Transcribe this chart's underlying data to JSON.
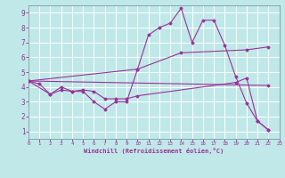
{
  "background_color": "#c0e8e8",
  "line_color": "#993399",
  "grid_color": "#aadddd",
  "xlabel": "Windchill (Refroidissement éolien,°C)",
  "xlim": [
    0,
    23
  ],
  "ylim": [
    0.5,
    9.5
  ],
  "xticks": [
    0,
    1,
    2,
    3,
    4,
    5,
    6,
    7,
    8,
    9,
    10,
    11,
    12,
    13,
    14,
    15,
    16,
    17,
    18,
    19,
    20,
    21,
    22,
    23
  ],
  "yticks": [
    1,
    2,
    3,
    4,
    5,
    6,
    7,
    8,
    9
  ],
  "line1_x": [
    0,
    1,
    2,
    3,
    4,
    5,
    6,
    7,
    8,
    9,
    10,
    11,
    12,
    13,
    14,
    15,
    16,
    17,
    18,
    19,
    20,
    21,
    22
  ],
  "line1_y": [
    4.4,
    4.2,
    3.5,
    3.8,
    3.7,
    3.7,
    3.0,
    2.5,
    3.0,
    3.0,
    5.2,
    7.5,
    8.0,
    8.3,
    9.3,
    7.0,
    8.5,
    8.5,
    6.8,
    4.7,
    2.9,
    1.7,
    1.1
  ],
  "line2_x": [
    0,
    2,
    3,
    4,
    5,
    6,
    7,
    8,
    9,
    10,
    19,
    20,
    21,
    22
  ],
  "line2_y": [
    4.4,
    3.5,
    4.0,
    3.7,
    3.8,
    3.7,
    3.2,
    3.2,
    3.2,
    3.4,
    4.3,
    4.6,
    1.7,
    1.1
  ],
  "line3_x": [
    0,
    10,
    14,
    20,
    22
  ],
  "line3_y": [
    4.4,
    5.2,
    6.3,
    6.5,
    6.7
  ],
  "line4_x": [
    0,
    22
  ],
  "line4_y": [
    4.4,
    4.1
  ]
}
